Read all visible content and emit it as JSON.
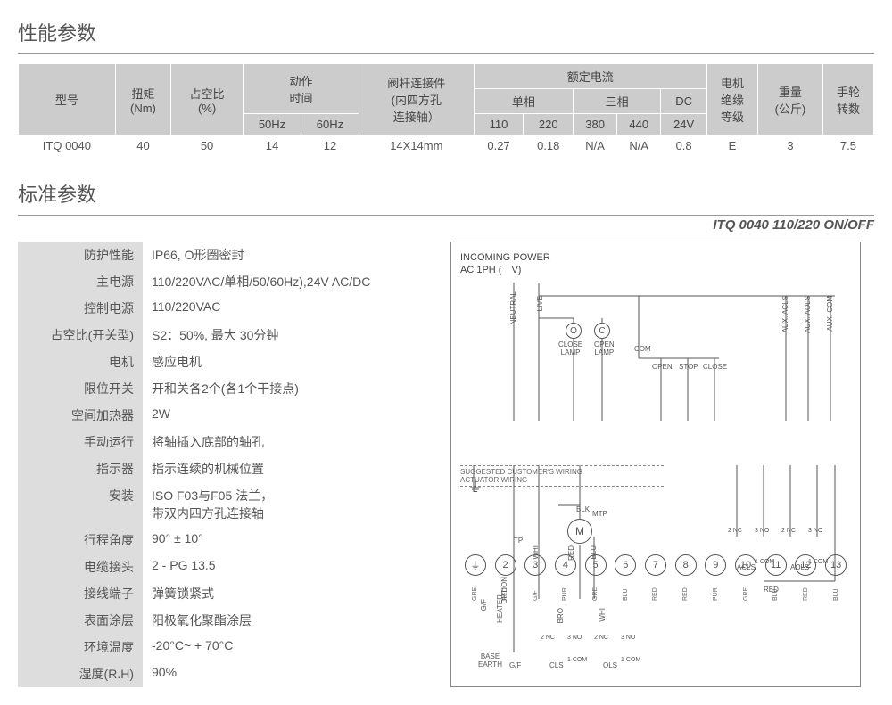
{
  "sections": {
    "performance": "性能参数",
    "standard": "标准参数"
  },
  "model_label": "ITQ 0040 110/220 ON/OFF",
  "perf": {
    "headers": {
      "model": "型号",
      "torque": "扭矩\n(Nm)",
      "duty": "占空比\n(%)",
      "action_time": "动作\n时间",
      "stem": "阀杆连接件\n(内四方孔\n连接轴）",
      "rated_current": "额定电流",
      "single_phase": "单相",
      "three_phase": "三相",
      "dc": "DC",
      "motor_ins": "电机\n绝缘\n等级",
      "weight": "重量\n(公斤)",
      "handwheel": "手轮\n转数",
      "hz50": "50Hz",
      "hz60": "60Hz",
      "v110": "110",
      "v220": "220",
      "v380": "380",
      "v440": "440",
      "v24": "24V"
    },
    "row": {
      "model": "ITQ 0040",
      "torque": "40",
      "duty": "50",
      "t50": "14",
      "t60": "12",
      "stem": "14X14mm",
      "c110": "0.27",
      "c220": "0.18",
      "c380": "N/A",
      "c440": "N/A",
      "c24": "0.8",
      "ins": "E",
      "weight": "3",
      "hw": "7.5"
    }
  },
  "std": [
    {
      "label": "防护性能",
      "value": "IP66, O形圈密封"
    },
    {
      "label": "主电源",
      "value": "110/220VAC/单相/50/60Hz),24V AC/DC"
    },
    {
      "label": "控制电源",
      "value": "110/220VAC"
    },
    {
      "label": "占空比(开关型)",
      "value": "S2：50%, 最大 30分钟"
    },
    {
      "label": "电机",
      "value": "感应电机"
    },
    {
      "label": "限位开关",
      "value": "开和关各2个(各1个干接点)"
    },
    {
      "label": "空间加热器",
      "value": "2W"
    },
    {
      "label": "手动运行",
      "value": "将轴插入底部的轴孔"
    },
    {
      "label": "指示器",
      "value": "指示连续的机械位置"
    },
    {
      "label": "安装",
      "value": "ISO F03与F05 法兰，\n带双内四方孔连接轴"
    },
    {
      "label": "行程角度",
      "value": "90° ± 10°"
    },
    {
      "label": "电缆接头",
      "value": "2 - PG 13.5"
    },
    {
      "label": "接线端子",
      "value": "弹簧锁紧式"
    },
    {
      "label": "表面涂层",
      "value": "阳极氧化聚酯涂层"
    },
    {
      "label": "环境温度",
      "value": "-20°C~ + 70°C"
    },
    {
      "label": "湿度(R.H)",
      "value": "90%"
    }
  ],
  "diagram": {
    "title1": "INCOMING POWER",
    "title2": "AC 1PH (　V)",
    "neutral": "NEUTRAL",
    "live": "LIVE",
    "close_lamp": "CLOSE\nLAMP",
    "open_lamp": "OPEN\nLAMP",
    "com": "COM",
    "open": "OPEN",
    "stop": "STOP",
    "close": "CLOSE",
    "aux_acls": "AUX. ACLS",
    "aux_aols": "AUX. AOLS",
    "aux_com": "AUX. COM",
    "wiring1": "SUGGESTED CUSTOMER'S WIRING",
    "wiring2": "ACTUATOR WIRING",
    "terminals": [
      {
        "n": "⏚",
        "c": "GRE"
      },
      {
        "n": "2",
        "c": "RED"
      },
      {
        "n": "3",
        "c": "G/F"
      },
      {
        "n": "4",
        "c": "PUR"
      },
      {
        "n": "5",
        "c": "GRE"
      },
      {
        "n": "6",
        "c": "BLU"
      },
      {
        "n": "7",
        "c": "RED"
      },
      {
        "n": "8",
        "c": "RED"
      },
      {
        "n": "9",
        "c": "PUR"
      },
      {
        "n": "10",
        "c": "GRE"
      },
      {
        "n": "11",
        "c": "BLU"
      },
      {
        "n": "12",
        "c": "RED"
      },
      {
        "n": "13",
        "c": "BLU"
      }
    ],
    "motor": "M",
    "mtp": "MTP",
    "tp": "TP",
    "option": "OPTION",
    "heater": "HEATER",
    "base_earth": "BASE\nEARTH",
    "acls": "ACLS",
    "aols": "AOLS",
    "cls": "CLS",
    "ols": "OLS",
    "red": "RED",
    "blu": "BLU",
    "blk": "BLK",
    "whi": "WHI",
    "bro": "BRO",
    "gf": "G/F",
    "nc": "NC",
    "no": "NO",
    "com_s": "COM"
  },
  "colors": {
    "header_bg": "#cccccc",
    "text": "#555555",
    "border": "#ffffff"
  }
}
